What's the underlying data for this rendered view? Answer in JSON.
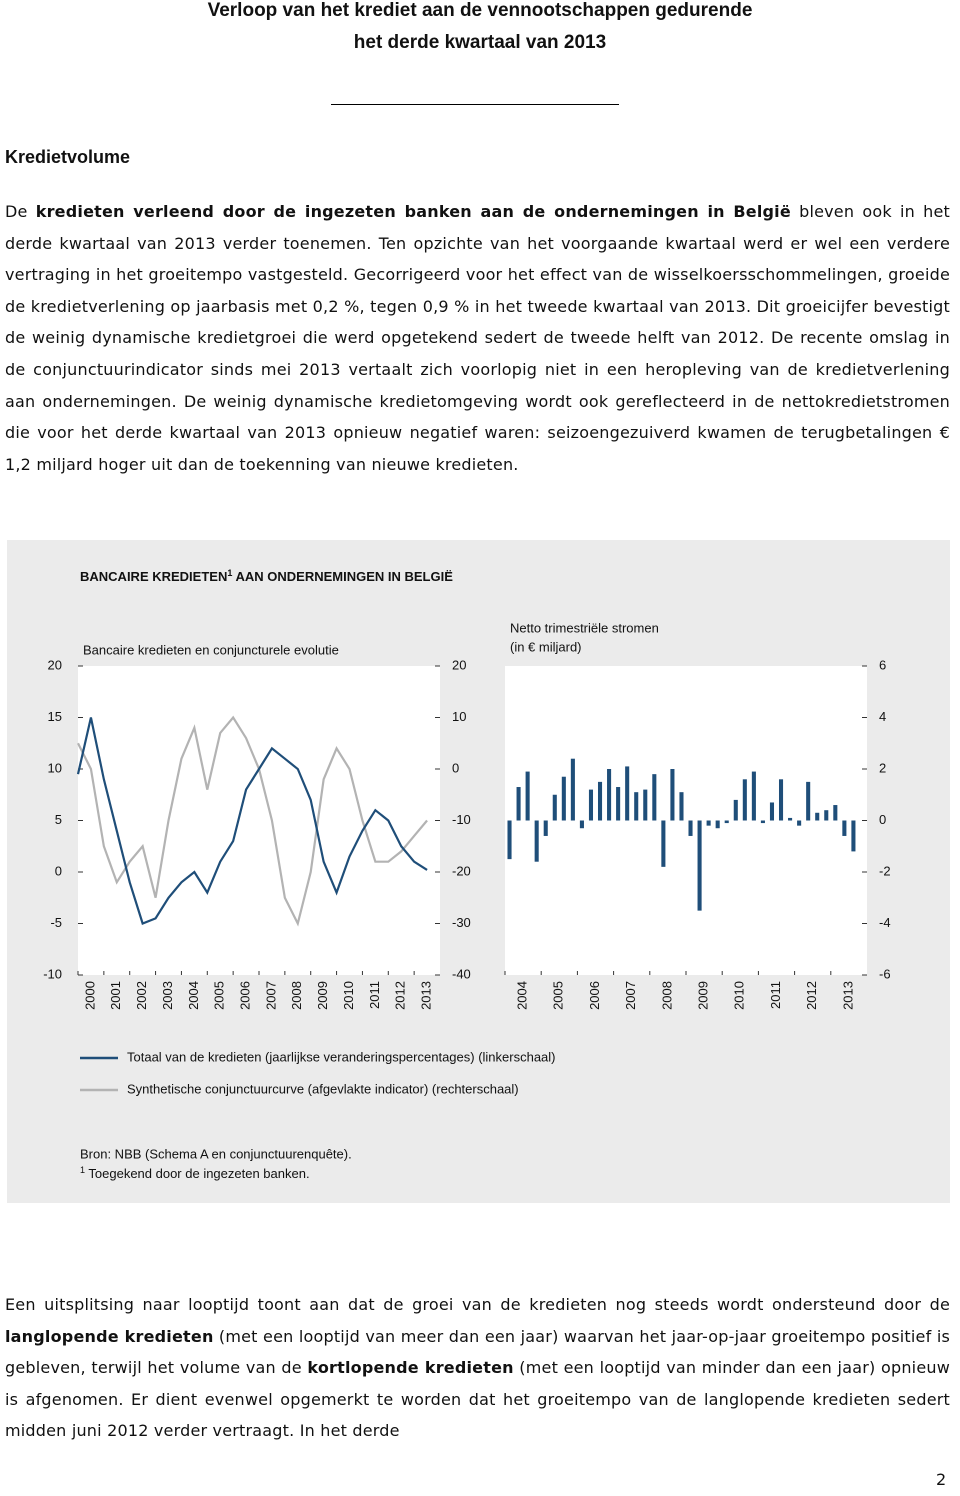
{
  "header": {
    "title_line1": "Verloop van het krediet aan de vennootschappen gedurende",
    "title_line2": "het derde kwartaal van 2013"
  },
  "section_title": "Kredietvolume",
  "paragraph1": [
    {
      "text": "De "
    },
    {
      "text": "kredieten verleend door de ingezeten banken aan de ondernemingen in België",
      "bold": true
    },
    {
      "text": " bleven ook in het derde kwartaal van 2013 verder toenemen. Ten opzichte van het voorgaande kwartaal werd er wel een verdere vertraging in het groeitempo vastgesteld. Gecorrigeerd voor het effect van de wisselkoersschommelingen, groeide de kredietverlening op jaarbasis met 0,2 %, tegen 0,9 % in het tweede kwartaal van 2013. Dit groeicijfer bevestigt de weinig dynamische kredietgroei die werd opgetekend sedert de tweede helft van 2012. De recente omslag in de conjunctuurindicator sinds mei 2013 vertaalt zich voorlopig niet in een heropleving van de kredietverlening aan ondernemingen. De weinig dynamische kredietomgeving wordt ook gereflecteerd in de nettokredietstromen die voor het derde kwartaal van 2013 opnieuw negatief waren: seizoengezuiverd kwamen de terugbetalingen € 1,2 miljard hoger uit dan de toekenning van nieuwe kredieten."
    }
  ],
  "figure": {
    "title": "BANCAIRE KREDIETEN",
    "title_mark": "1",
    "title_rest": " AAN ONDERNEMINGEN IN BELGIË",
    "source": "Bron: NBB (Schema A en conjunctuurenquête).",
    "footnote_mark": "1",
    "footnote": " Toegekend door de ingezeten banken."
  },
  "chart_data": [
    {
      "type": "line",
      "title": "Bancaire kredieten en conjuncturele evolutie",
      "x": [
        2000,
        2000.5,
        2001,
        2001.5,
        2002,
        2002.5,
        2003,
        2003.5,
        2004,
        2004.5,
        2005,
        2005.5,
        2006,
        2006.5,
        2007,
        2007.5,
        2008,
        2008.5,
        2009,
        2009.5,
        2010,
        2010.5,
        2011,
        2011.5,
        2012,
        2012.5,
        2013,
        2013.5
      ],
      "xlim": [
        2000,
        2014
      ],
      "xticks": [
        2000,
        2001,
        2002,
        2003,
        2004,
        2005,
        2006,
        2007,
        2008,
        2009,
        2010,
        2011,
        2012,
        2013
      ],
      "ylim": [
        -10,
        20
      ],
      "yticks": [
        -10,
        -5,
        0,
        5,
        10,
        15,
        20
      ],
      "y2lim": [
        -40,
        20
      ],
      "y2ticks": [
        -40,
        -30,
        -20,
        -10,
        0,
        10,
        20
      ],
      "series": [
        {
          "name": "Totaal van de kredieten (jaarlijkse veranderingspercentages) (linkerschaal)",
          "color": "#1f4e79",
          "values": [
            9.5,
            15,
            9,
            4,
            -1,
            -5,
            -4.5,
            -2.5,
            -1,
            0,
            -2,
            1,
            3,
            8,
            10,
            12,
            11,
            10,
            7,
            1,
            -2,
            1.5,
            4,
            6,
            5,
            2.5,
            1,
            0.2
          ]
        },
        {
          "name": "Synthetische conjunctuurcurve (afgevlakte indicator) (rechterschaal)",
          "color": "#b3b3b3",
          "axis": "y2",
          "values": [
            5,
            0,
            -15,
            -22,
            -18,
            -15,
            -25,
            -10,
            2,
            8,
            -4,
            7,
            10,
            6,
            0,
            -10,
            -25,
            -30,
            -20,
            -2,
            4,
            0,
            -10,
            -18,
            -18,
            -16,
            -13,
            -10
          ]
        }
      ]
    },
    {
      "type": "bar",
      "title": "Netto trimestriële stromen",
      "subtitle": "(in € miljard)",
      "color": "#1f4e79",
      "y_axis_position": "right",
      "x": [
        2004,
        2004.25,
        2004.5,
        2004.75,
        2005,
        2005.25,
        2005.5,
        2005.75,
        2006,
        2006.25,
        2006.5,
        2006.75,
        2007,
        2007.25,
        2007.5,
        2007.75,
        2008,
        2008.25,
        2008.5,
        2008.75,
        2009,
        2009.25,
        2009.5,
        2009.75,
        2010,
        2010.25,
        2010.5,
        2010.75,
        2011,
        2011.25,
        2011.5,
        2011.75,
        2012,
        2012.25,
        2012.5,
        2012.75,
        2013,
        2013.25,
        2013.5
      ],
      "values": [
        -1.5,
        1.3,
        1.9,
        -1.6,
        -0.6,
        1.0,
        1.7,
        2.4,
        -0.3,
        1.2,
        1.5,
        2.0,
        1.3,
        2.1,
        1.1,
        1.2,
        1.8,
        -1.8,
        2.0,
        1.1,
        -0.6,
        -3.5,
        -0.2,
        -0.3,
        -0.1,
        0.8,
        1.6,
        1.9,
        -0.1,
        0.7,
        1.6,
        0.1,
        -0.2,
        1.5,
        0.3,
        0.4,
        0.6,
        -0.6,
        -1.2
      ],
      "xlim": [
        2004,
        2014
      ],
      "xticks": [
        2004,
        2005,
        2006,
        2007,
        2008,
        2009,
        2010,
        2011,
        2012,
        2013
      ],
      "ylim": [
        -6,
        6
      ],
      "yticks": [
        -6,
        -4,
        -2,
        0,
        2,
        4,
        6
      ]
    }
  ],
  "paragraph2": [
    {
      "text": "Een uitsplitsing naar looptijd toont aan dat de groei van de kredieten nog steeds wordt ondersteund door de "
    },
    {
      "text": "langlopende kredieten",
      "bold": true
    },
    {
      "text": " (met een looptijd van meer dan een jaar) waarvan het jaar-op-jaar groeitempo positief is gebleven, terwijl het volume van de "
    },
    {
      "text": "kortlopende kredieten",
      "bold": true
    },
    {
      "text": " (met een looptijd van minder dan een jaar) opnieuw is afgenomen. Er dient evenwel opgemerkt te worden dat het groeitempo van de langlopende kredieten sedert midden juni 2012 verder vertraagt. In het derde"
    }
  ],
  "page_number": "2"
}
